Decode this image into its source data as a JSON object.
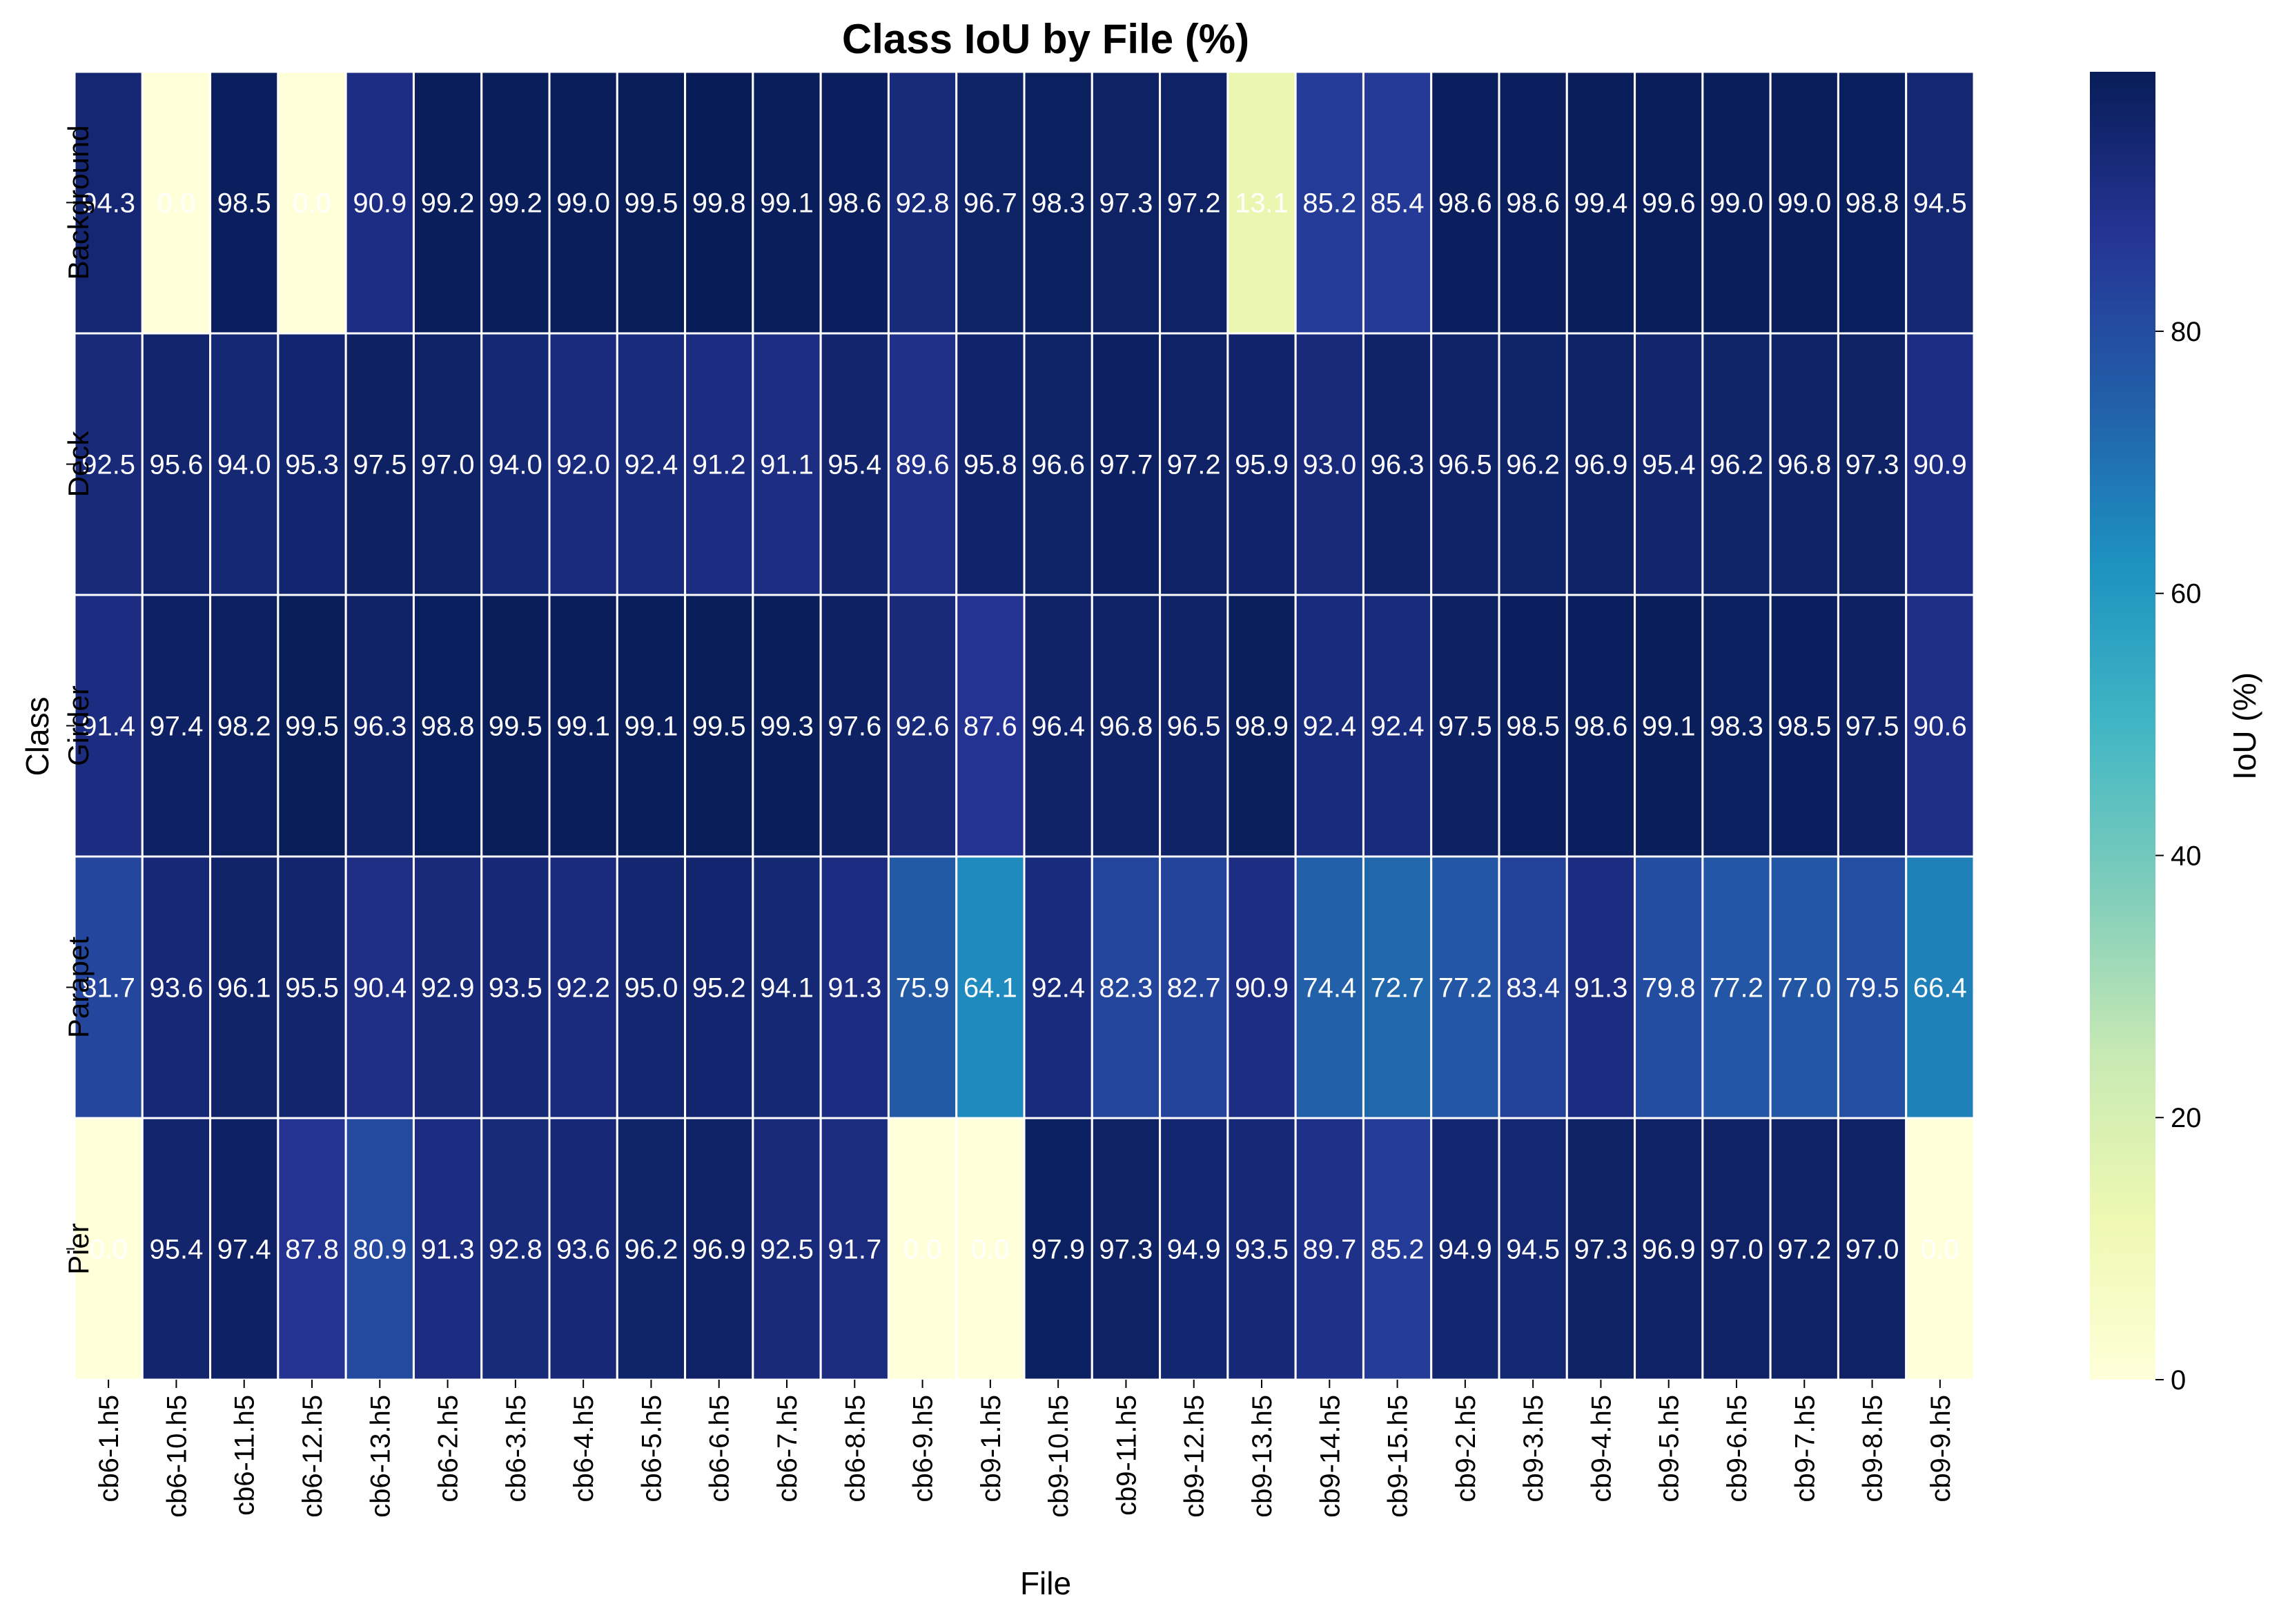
{
  "chart_data": {
    "type": "heatmap",
    "title": "Class IoU by File (%)",
    "xlabel": "File",
    "ylabel": "Class",
    "colorbar_label": "IoU (%)",
    "colorbar_ticks": [
      0,
      20,
      40,
      60,
      80
    ],
    "value_range": [
      0,
      99.8
    ],
    "colormap": "YlGnBu",
    "colormap_stops": [
      "#ffffd9",
      "#edf8b1",
      "#c7e9b4",
      "#7fcdbb",
      "#41b6c4",
      "#1d91c0",
      "#225ea8",
      "#253494",
      "#081d58"
    ],
    "cell_border_color": "#ffffff",
    "annotation_color": "#ffffff",
    "columns": [
      "cb6-1.h5",
      "cb6-10.h5",
      "cb6-11.h5",
      "cb6-12.h5",
      "cb6-13.h5",
      "cb6-2.h5",
      "cb6-3.h5",
      "cb6-4.h5",
      "cb6-5.h5",
      "cb6-6.h5",
      "cb6-7.h5",
      "cb6-8.h5",
      "cb6-9.h5",
      "cb9-1.h5",
      "cb9-10.h5",
      "cb9-11.h5",
      "cb9-12.h5",
      "cb9-13.h5",
      "cb9-14.h5",
      "cb9-15.h5",
      "cb9-2.h5",
      "cb9-3.h5",
      "cb9-4.h5",
      "cb9-5.h5",
      "cb9-6.h5",
      "cb9-7.h5",
      "cb9-8.h5",
      "cb9-9.h5"
    ],
    "rows": [
      "Background",
      "Deck",
      "Girder",
      "Parapet",
      "Pier"
    ],
    "values": [
      [
        94.3,
        0.0,
        98.5,
        0.0,
        90.9,
        99.2,
        99.2,
        99.0,
        99.5,
        99.8,
        99.1,
        98.6,
        92.8,
        96.7,
        98.3,
        97.3,
        97.2,
        13.1,
        85.2,
        85.4,
        98.6,
        98.6,
        99.4,
        99.6,
        99.0,
        99.0,
        98.8,
        94.5
      ],
      [
        92.5,
        95.6,
        94.0,
        95.3,
        97.5,
        97.0,
        94.0,
        92.0,
        92.4,
        91.2,
        91.1,
        95.4,
        89.6,
        95.8,
        96.6,
        97.7,
        97.2,
        95.9,
        93.0,
        96.3,
        96.5,
        96.2,
        96.9,
        95.4,
        96.2,
        96.8,
        97.3,
        90.9
      ],
      [
        91.4,
        97.4,
        98.2,
        99.5,
        96.3,
        98.8,
        99.5,
        99.1,
        99.1,
        99.5,
        99.3,
        97.6,
        92.6,
        87.6,
        96.4,
        96.8,
        96.5,
        98.9,
        92.4,
        92.4,
        97.5,
        98.5,
        98.6,
        99.1,
        98.3,
        98.5,
        97.5,
        90.6
      ],
      [
        81.7,
        93.6,
        96.1,
        95.5,
        90.4,
        92.9,
        93.5,
        92.2,
        95.0,
        95.2,
        94.1,
        91.3,
        75.9,
        64.1,
        92.4,
        82.3,
        82.7,
        90.9,
        74.4,
        72.7,
        77.2,
        83.4,
        91.3,
        79.8,
        77.2,
        77.0,
        79.5,
        66.4
      ],
      [
        0.0,
        95.4,
        97.4,
        87.8,
        80.9,
        91.3,
        92.8,
        93.6,
        96.2,
        96.9,
        92.5,
        91.7,
        0.0,
        0.0,
        97.9,
        97.3,
        94.9,
        93.5,
        89.7,
        85.2,
        94.9,
        94.5,
        97.3,
        96.9,
        97.0,
        97.2,
        97.0,
        0.0
      ]
    ]
  }
}
